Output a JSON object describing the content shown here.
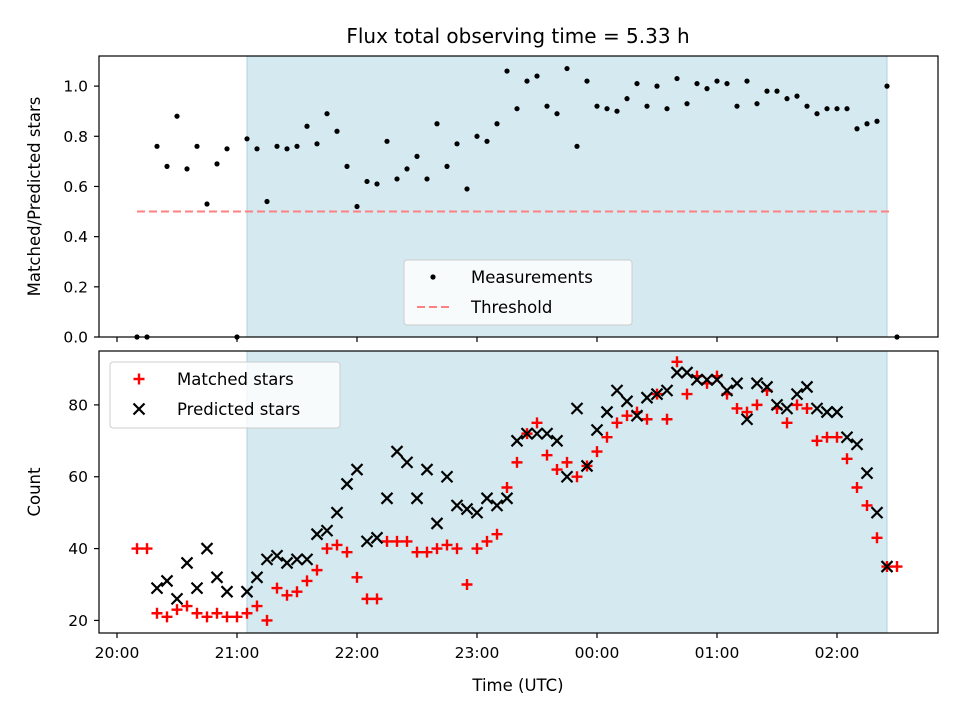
{
  "chart_data": {
    "title": "Flux total observing time = 5.33 h",
    "xlabel": "Time (UTC)",
    "x_ticks": [
      "20:00",
      "21:00",
      "22:00",
      "23:00",
      "00:00",
      "01:00",
      "02:00"
    ],
    "x_range": [
      "19:50",
      "03:00"
    ],
    "shaded_interval": [
      "21:05",
      "02:25"
    ],
    "shade_color": "#d4eaf0",
    "panels": [
      {
        "type": "scatter",
        "ylabel": "Matched/Predicted stars",
        "ylim": [
          0,
          1.12
        ],
        "y_ticks": [
          "0.0",
          "0.2",
          "0.4",
          "0.6",
          "0.8",
          "1.0"
        ],
        "legend_position": "lower-center",
        "series": [
          {
            "name": "Measurements",
            "marker": "dot",
            "color": "#000000",
            "points": [
              [
                "20:10",
                0.0
              ],
              [
                "20:15",
                0.0
              ],
              [
                "20:20",
                0.76
              ],
              [
                "20:25",
                0.68
              ],
              [
                "20:30",
                0.88
              ],
              [
                "20:35",
                0.67
              ],
              [
                "20:40",
                0.76
              ],
              [
                "20:45",
                0.53
              ],
              [
                "20:50",
                0.69
              ],
              [
                "20:55",
                0.75
              ],
              [
                "21:00",
                0.0
              ],
              [
                "21:05",
                0.79
              ],
              [
                "21:10",
                0.75
              ],
              [
                "21:15",
                0.54
              ],
              [
                "21:20",
                0.76
              ],
              [
                "21:25",
                0.75
              ],
              [
                "21:30",
                0.76
              ],
              [
                "21:35",
                0.84
              ],
              [
                "21:40",
                0.77
              ],
              [
                "21:45",
                0.89
              ],
              [
                "21:50",
                0.82
              ],
              [
                "21:55",
                0.68
              ],
              [
                "22:00",
                0.52
              ],
              [
                "22:05",
                0.62
              ],
              [
                "22:10",
                0.61
              ],
              [
                "22:15",
                0.78
              ],
              [
                "22:20",
                0.63
              ],
              [
                "22:25",
                0.67
              ],
              [
                "22:30",
                0.72
              ],
              [
                "22:35",
                0.63
              ],
              [
                "22:40",
                0.85
              ],
              [
                "22:45",
                0.68
              ],
              [
                "22:50",
                0.77
              ],
              [
                "22:55",
                0.59
              ],
              [
                "23:00",
                0.8
              ],
              [
                "23:05",
                0.78
              ],
              [
                "23:10",
                0.85
              ],
              [
                "23:15",
                1.06
              ],
              [
                "23:20",
                0.91
              ],
              [
                "23:25",
                1.02
              ],
              [
                "23:30",
                1.04
              ],
              [
                "23:35",
                0.92
              ],
              [
                "23:40",
                0.89
              ],
              [
                "23:45",
                1.07
              ],
              [
                "23:50",
                0.76
              ],
              [
                "23:55",
                1.02
              ],
              [
                "00:00",
                0.92
              ],
              [
                "00:05",
                0.91
              ],
              [
                "00:10",
                0.9
              ],
              [
                "00:15",
                0.95
              ],
              [
                "00:20",
                1.01
              ],
              [
                "00:25",
                0.92
              ],
              [
                "00:30",
                1.0
              ],
              [
                "00:35",
                0.91
              ],
              [
                "00:40",
                1.03
              ],
              [
                "00:45",
                0.93
              ],
              [
                "00:50",
                1.01
              ],
              [
                "00:55",
                0.99
              ],
              [
                "01:00",
                1.02
              ],
              [
                "01:05",
                1.01
              ],
              [
                "01:10",
                0.92
              ],
              [
                "01:15",
                1.02
              ],
              [
                "01:20",
                0.93
              ],
              [
                "01:25",
                0.98
              ],
              [
                "01:30",
                0.98
              ],
              [
                "01:35",
                0.95
              ],
              [
                "01:40",
                0.96
              ],
              [
                "01:45",
                0.92
              ],
              [
                "01:50",
                0.89
              ],
              [
                "01:55",
                0.91
              ],
              [
                "02:00",
                0.91
              ],
              [
                "02:05",
                0.91
              ],
              [
                "02:10",
                0.83
              ],
              [
                "02:15",
                0.85
              ],
              [
                "02:20",
                0.86
              ],
              [
                "02:25",
                1.0
              ],
              [
                "02:30",
                0.0
              ]
            ]
          },
          {
            "name": "Threshold",
            "marker": "dashed-line",
            "color": "#ff8080",
            "points": [
              [
                "20:10",
                0.5
              ],
              [
                "02:28",
                0.5
              ]
            ]
          }
        ]
      },
      {
        "type": "scatter",
        "ylabel": "Count",
        "ylim": [
          16.5,
          95
        ],
        "y_ticks": [
          "20",
          "40",
          "60",
          "80"
        ],
        "legend_position": "upper-left",
        "series": [
          {
            "name": "Matched stars",
            "marker": "plus",
            "color": "#ff0000",
            "points": [
              [
                "20:10",
                40
              ],
              [
                "20:15",
                40
              ],
              [
                "20:20",
                22
              ],
              [
                "20:25",
                21
              ],
              [
                "20:30",
                23
              ],
              [
                "20:35",
                24
              ],
              [
                "20:40",
                22
              ],
              [
                "20:45",
                21
              ],
              [
                "20:50",
                22
              ],
              [
                "20:55",
                21
              ],
              [
                "21:00",
                21
              ],
              [
                "21:05",
                22
              ],
              [
                "21:10",
                24
              ],
              [
                "21:15",
                20
              ],
              [
                "21:20",
                29
              ],
              [
                "21:25",
                27
              ],
              [
                "21:30",
                28
              ],
              [
                "21:35",
                31
              ],
              [
                "21:40",
                34
              ],
              [
                "21:45",
                40
              ],
              [
                "21:50",
                41
              ],
              [
                "21:55",
                39
              ],
              [
                "22:00",
                32
              ],
              [
                "22:05",
                26
              ],
              [
                "22:10",
                26
              ],
              [
                "22:15",
                42
              ],
              [
                "22:20",
                42
              ],
              [
                "22:25",
                42
              ],
              [
                "22:30",
                39
              ],
              [
                "22:35",
                39
              ],
              [
                "22:40",
                40
              ],
              [
                "22:45",
                41
              ],
              [
                "22:50",
                40
              ],
              [
                "22:55",
                30
              ],
              [
                "23:00",
                40
              ],
              [
                "23:05",
                42
              ],
              [
                "23:10",
                44
              ],
              [
                "23:15",
                57
              ],
              [
                "23:20",
                64
              ],
              [
                "23:25",
                72
              ],
              [
                "23:30",
                75
              ],
              [
                "23:35",
                66
              ],
              [
                "23:40",
                62
              ],
              [
                "23:45",
                64
              ],
              [
                "23:50",
                60
              ],
              [
                "23:55",
                63
              ],
              [
                "00:00",
                67
              ],
              [
                "00:05",
                71
              ],
              [
                "00:10",
                75
              ],
              [
                "00:15",
                77
              ],
              [
                "00:20",
                78
              ],
              [
                "00:25",
                76
              ],
              [
                "00:30",
                83
              ],
              [
                "00:35",
                76
              ],
              [
                "00:40",
                92
              ],
              [
                "00:45",
                83
              ],
              [
                "00:50",
                88
              ],
              [
                "00:55",
                86
              ],
              [
                "01:00",
                88
              ],
              [
                "01:05",
                83
              ],
              [
                "01:10",
                79
              ],
              [
                "01:15",
                78
              ],
              [
                "01:20",
                80
              ],
              [
                "01:25",
                84
              ],
              [
                "01:30",
                79
              ],
              [
                "01:35",
                75
              ],
              [
                "01:40",
                80
              ],
              [
                "01:45",
                79
              ],
              [
                "01:50",
                70
              ],
              [
                "01:55",
                71
              ],
              [
                "02:00",
                71
              ],
              [
                "02:05",
                65
              ],
              [
                "02:10",
                57
              ],
              [
                "02:15",
                52
              ],
              [
                "02:20",
                43
              ],
              [
                "02:25",
                35
              ],
              [
                "02:30",
                35
              ]
            ]
          },
          {
            "name": "Predicted stars",
            "marker": "x",
            "color": "#000000",
            "points": [
              [
                "20:20",
                29
              ],
              [
                "20:25",
                31
              ],
              [
                "20:30",
                26
              ],
              [
                "20:35",
                36
              ],
              [
                "20:40",
                29
              ],
              [
                "20:45",
                40
              ],
              [
                "20:50",
                32
              ],
              [
                "20:55",
                28
              ],
              [
                "21:05",
                28
              ],
              [
                "21:10",
                32
              ],
              [
                "21:15",
                37
              ],
              [
                "21:20",
                38
              ],
              [
                "21:25",
                36
              ],
              [
                "21:30",
                37
              ],
              [
                "21:35",
                37
              ],
              [
                "21:40",
                44
              ],
              [
                "21:45",
                45
              ],
              [
                "21:50",
                50
              ],
              [
                "21:55",
                58
              ],
              [
                "22:00",
                62
              ],
              [
                "22:05",
                42
              ],
              [
                "22:10",
                43
              ],
              [
                "22:15",
                54
              ],
              [
                "22:20",
                67
              ],
              [
                "22:25",
                64
              ],
              [
                "22:30",
                54
              ],
              [
                "22:35",
                62
              ],
              [
                "22:40",
                47
              ],
              [
                "22:45",
                60
              ],
              [
                "22:50",
                52
              ],
              [
                "22:55",
                51
              ],
              [
                "23:00",
                50
              ],
              [
                "23:05",
                54
              ],
              [
                "23:10",
                52
              ],
              [
                "23:15",
                54
              ],
              [
                "23:20",
                70
              ],
              [
                "23:25",
                72
              ],
              [
                "23:30",
                72
              ],
              [
                "23:35",
                72
              ],
              [
                "23:40",
                70
              ],
              [
                "23:45",
                60
              ],
              [
                "23:50",
                79
              ],
              [
                "23:55",
                63
              ],
              [
                "00:00",
                73
              ],
              [
                "00:05",
                78
              ],
              [
                "00:10",
                84
              ],
              [
                "00:15",
                81
              ],
              [
                "00:20",
                77
              ],
              [
                "00:25",
                82
              ],
              [
                "00:30",
                83
              ],
              [
                "00:35",
                84
              ],
              [
                "00:40",
                89
              ],
              [
                "00:45",
                89
              ],
              [
                "00:50",
                87
              ],
              [
                "00:55",
                87
              ],
              [
                "01:00",
                87
              ],
              [
                "01:05",
                84
              ],
              [
                "01:10",
                86
              ],
              [
                "01:15",
                76
              ],
              [
                "01:20",
                86
              ],
              [
                "01:25",
                85
              ],
              [
                "01:30",
                80
              ],
              [
                "01:35",
                79
              ],
              [
                "01:40",
                83
              ],
              [
                "01:45",
                85
              ],
              [
                "01:50",
                79
              ],
              [
                "01:55",
                78
              ],
              [
                "02:00",
                78
              ],
              [
                "02:05",
                71
              ],
              [
                "02:10",
                69
              ],
              [
                "02:15",
                61
              ],
              [
                "02:20",
                50
              ],
              [
                "02:25",
                35
              ]
            ]
          }
        ]
      }
    ]
  }
}
